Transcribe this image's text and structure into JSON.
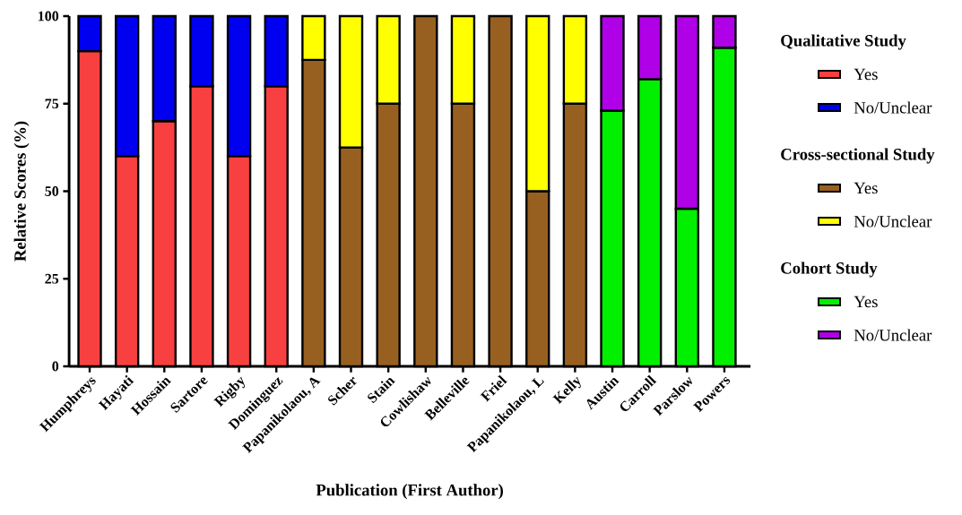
{
  "chart_data": {
    "type": "bar",
    "stacked": true,
    "xlabel": "Publication (First Author)",
    "ylabel": "Relative Scores (%)",
    "categories": [
      "Humphreys",
      "Hayati",
      "Hossain",
      "Sartore",
      "Rigby",
      "Dominguez",
      "Papanikolaou, A",
      "Scher",
      "Stain",
      "Cowlishaw",
      "Belleville",
      "Friel",
      "Papanikolaou, L",
      "Kelly",
      "Austin",
      "Carroll",
      "Parslow",
      "Powers"
    ],
    "series": [
      {
        "name": "Yes",
        "color": "#f84040",
        "values": [
          90,
          60,
          70,
          80,
          60,
          80,
          null,
          null,
          null,
          null,
          null,
          null,
          null,
          null,
          null,
          null,
          null,
          null
        ]
      },
      {
        "name": "No/Unclear",
        "color": "#0000f0",
        "values": [
          10,
          40,
          30,
          20,
          40,
          20,
          null,
          null,
          null,
          null,
          null,
          null,
          null,
          null,
          null,
          null,
          null,
          null
        ]
      },
      {
        "name": "Yes",
        "color": "#986020",
        "values": [
          null,
          null,
          null,
          null,
          null,
          null,
          87.5,
          62.5,
          75,
          100,
          75,
          100,
          50,
          75,
          null,
          null,
          null,
          null
        ]
      },
      {
        "name": "No/Unclear",
        "color": "#ffff00",
        "values": [
          null,
          null,
          null,
          null,
          null,
          null,
          12.5,
          37.5,
          25,
          0,
          25,
          0,
          50,
          25,
          null,
          null,
          null,
          null
        ]
      },
      {
        "name": "Yes",
        "color": "#00f000",
        "values": [
          null,
          null,
          null,
          null,
          null,
          null,
          null,
          null,
          null,
          null,
          null,
          null,
          null,
          null,
          73,
          82,
          45,
          91
        ]
      },
      {
        "name": "No/Unclear",
        "color": "#b000e8",
        "values": [
          null,
          null,
          null,
          null,
          null,
          null,
          null,
          null,
          null,
          null,
          null,
          null,
          null,
          null,
          27,
          18,
          55,
          9
        ]
      }
    ],
    "annotations": [
      "Qualitative Study",
      "Cross-sectional Study",
      "Cohort Study"
    ],
    "ylim": [
      0,
      100
    ],
    "yticks": [
      0,
      25,
      50,
      75,
      100
    ],
    "legend": "right"
  }
}
